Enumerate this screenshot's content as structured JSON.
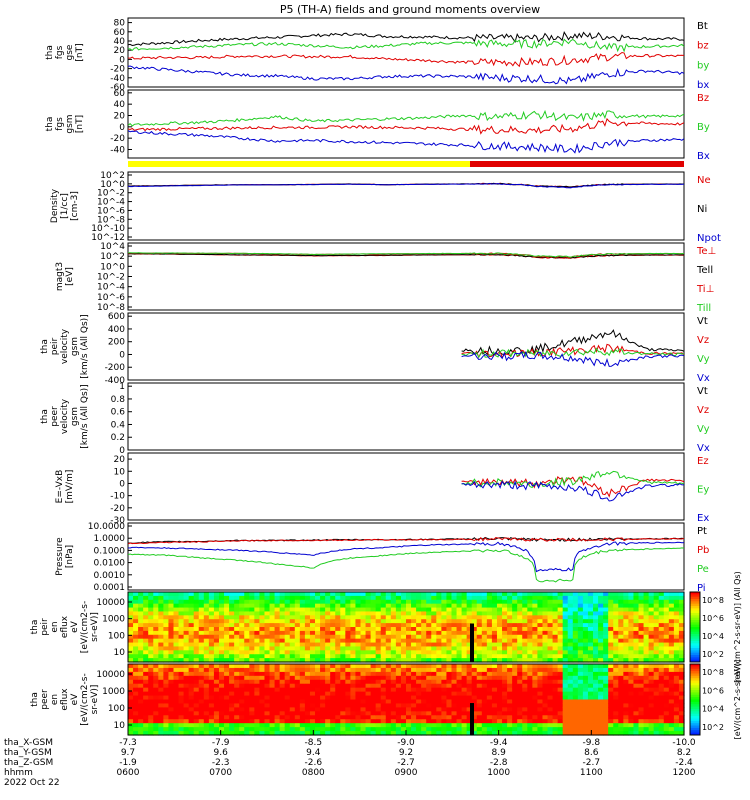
{
  "title": "P5 (TH-A) fields and ground moments overview",
  "colors": {
    "black": "#000000",
    "red": "#e00000",
    "green": "#22cc22",
    "blue": "#0000d0",
    "yellow": "#ffff00",
    "mode_red": "#e00000",
    "heat_low": "#0000ff",
    "heat_high": "#dd0000"
  },
  "chart_data": [
    {
      "id": "fgs_gse",
      "type": "line",
      "ylabel": [
        "tha",
        "fgs",
        "gse",
        "[nT]"
      ],
      "yticks": [
        80,
        60,
        40,
        20,
        0,
        -20,
        -40,
        -60
      ],
      "ylim": [
        -60,
        90
      ],
      "series": [
        {
          "name": "Bt",
          "color": "black",
          "values": [
            32,
            36,
            41,
            45,
            48,
            52,
            55,
            50,
            49,
            47,
            46,
            46,
            52,
            50,
            45,
            44
          ]
        },
        {
          "name": "bz",
          "color": "red",
          "values": [
            2,
            4,
            4,
            7,
            7,
            6,
            6,
            1,
            -2,
            -6,
            -6,
            -6,
            -1,
            6,
            8,
            7
          ]
        },
        {
          "name": "by",
          "color": "green",
          "values": [
            22,
            25,
            28,
            32,
            34,
            30,
            26,
            30,
            35,
            36,
            34,
            34,
            40,
            25,
            28,
            30
          ]
        },
        {
          "name": "bx",
          "color": "blue",
          "values": [
            -16,
            -22,
            -28,
            -34,
            -36,
            -42,
            -42,
            -37,
            -36,
            -37,
            -40,
            -42,
            -48,
            -30,
            -25,
            -30
          ]
        }
      ]
    },
    {
      "id": "fgs_gsm",
      "type": "line",
      "ylabel": [
        "tha",
        "fgs",
        "gsm",
        "[nT]"
      ],
      "yticks": [
        60,
        40,
        20,
        0,
        -20,
        -40
      ],
      "ylim": [
        -55,
        65
      ],
      "series": [
        {
          "name": "Bz",
          "color": "red",
          "values": [
            -5,
            -4,
            -3,
            -2,
            -1,
            -1,
            0,
            -1,
            -2,
            -4,
            -5,
            -6,
            -3,
            8,
            6,
            5
          ]
        },
        {
          "name": "By",
          "color": "green",
          "values": [
            3,
            6,
            8,
            12,
            18,
            10,
            12,
            14,
            16,
            20,
            18,
            22,
            15,
            22,
            18,
            20
          ]
        },
        {
          "name": "Bx",
          "color": "blue",
          "values": [
            -8,
            -12,
            -15,
            -20,
            -25,
            -24,
            -26,
            -28,
            -30,
            -32,
            -34,
            -36,
            -40,
            -28,
            -24,
            -22
          ]
        }
      ]
    },
    {
      "id": "density",
      "type": "line",
      "log": true,
      "ylabel": [
        "Density",
        "[1/cc]",
        "[cm-3]"
      ],
      "yticks": [
        "10^2",
        "10^0",
        "10^-2",
        "10^-4",
        "10^-6",
        "10^-8",
        "10^-10",
        "10^-12"
      ],
      "ylim_exp": [
        -13,
        3
      ],
      "series": [
        {
          "name": "Ne",
          "color": "red",
          "values": [
            0.5,
            0.6,
            0.8,
            1,
            1,
            1.2,
            1.5,
            1,
            1.4,
            1.5,
            1.8,
            0.5,
            0.3,
            1.2,
            1.4,
            1.5
          ]
        },
        {
          "name": "Ni",
          "color": "black",
          "values": [
            0.5,
            0.6,
            0.8,
            1,
            1,
            1.2,
            1.5,
            1,
            1.4,
            1.5,
            1.8,
            0.5,
            0.3,
            1.2,
            1.4,
            1.5
          ]
        },
        {
          "name": "Npot",
          "color": "blue",
          "values": [
            0.4,
            0.5,
            0.7,
            0.9,
            1,
            1.1,
            1.3,
            1,
            1.3,
            1.4,
            1.7,
            0.4,
            0.2,
            1,
            1.2,
            1.3
          ]
        }
      ]
    },
    {
      "id": "temperature",
      "type": "line",
      "log": true,
      "ylabel": [
        "magt3",
        "[eV]"
      ],
      "yticks": [
        "10^4",
        "10^2",
        "10^0",
        "10^-2",
        "10^-4",
        "10^-6",
        "10^-8"
      ],
      "ylim_exp": [
        -9,
        4.5
      ],
      "series": [
        {
          "name": "Te⊥",
          "color": "red",
          "values": [
            200,
            180,
            150,
            120,
            110,
            80,
            90,
            100,
            120,
            130,
            140,
            40,
            30,
            100,
            110,
            120
          ]
        },
        {
          "name": "Tell",
          "color": "black",
          "values": [
            210,
            190,
            160,
            130,
            120,
            90,
            100,
            110,
            130,
            140,
            150,
            45,
            35,
            110,
            120,
            130
          ]
        },
        {
          "name": "Ti⊥",
          "color": "red",
          "values": [
            300,
            280,
            260,
            240,
            200,
            150,
            180,
            200,
            220,
            240,
            250,
            60,
            50,
            200,
            220,
            230
          ]
        },
        {
          "name": "Till",
          "color": "green",
          "values": [
            320,
            300,
            280,
            260,
            220,
            160,
            190,
            210,
            230,
            250,
            260,
            70,
            55,
            210,
            230,
            240
          ]
        }
      ]
    },
    {
      "id": "peir_velocity",
      "type": "line",
      "ylabel": [
        "tha",
        "peir",
        "velocity",
        "gsm",
        "[km/s (All Qs)]"
      ],
      "yticks": [
        600,
        400,
        200,
        0,
        -200,
        -400
      ],
      "ylim": [
        -400,
        650
      ],
      "series": [
        {
          "name": "Vt",
          "color": "black",
          "values": [
            null,
            null,
            null,
            null,
            null,
            null,
            null,
            null,
            null,
            70,
            60,
            80,
            200,
            350,
            80,
            60
          ]
        },
        {
          "name": "Vz",
          "color": "red",
          "values": [
            null,
            null,
            null,
            null,
            null,
            null,
            null,
            null,
            null,
            20,
            10,
            30,
            60,
            100,
            20,
            10
          ]
        },
        {
          "name": "Vy",
          "color": "green",
          "values": [
            null,
            null,
            null,
            null,
            null,
            null,
            null,
            null,
            null,
            0,
            20,
            10,
            40,
            50,
            10,
            0
          ]
        },
        {
          "name": "Vx",
          "color": "blue",
          "values": [
            null,
            null,
            null,
            null,
            null,
            null,
            null,
            null,
            null,
            -20,
            -30,
            -20,
            -60,
            -150,
            -30,
            -20
          ]
        }
      ]
    },
    {
      "id": "peer_velocity",
      "type": "line",
      "ylabel": [
        "tha",
        "peer",
        "velocity",
        "gsm",
        "[km/s (All Qs)]"
      ],
      "yticks": [
        1.0,
        0.8,
        0.6,
        0.4,
        0.2,
        0.0
      ],
      "ylim": [
        0,
        1.05
      ],
      "series": [
        {
          "name": "Vt",
          "color": "black",
          "values": []
        },
        {
          "name": "Vz",
          "color": "red",
          "values": []
        },
        {
          "name": "Vy",
          "color": "green",
          "values": []
        },
        {
          "name": "Vx",
          "color": "blue",
          "values": []
        }
      ]
    },
    {
      "id": "efield",
      "type": "line",
      "ylabel": [
        "E=-VxB",
        "[mV/m]"
      ],
      "yticks": [
        20,
        10,
        0,
        -10,
        -20,
        -30
      ],
      "ylim": [
        -30,
        25
      ],
      "series": [
        {
          "name": "Ez",
          "color": "red",
          "values": [
            null,
            null,
            null,
            null,
            null,
            null,
            null,
            null,
            null,
            1,
            2,
            0,
            5,
            -8,
            3,
            2
          ]
        },
        {
          "name": "Ey",
          "color": "green",
          "values": [
            null,
            null,
            null,
            null,
            null,
            null,
            null,
            null,
            null,
            0,
            1,
            -1,
            2,
            10,
            1,
            0
          ]
        },
        {
          "name": "Ex",
          "color": "blue",
          "values": [
            null,
            null,
            null,
            null,
            null,
            null,
            null,
            null,
            null,
            -1,
            -1,
            -2,
            -3,
            -12,
            -2,
            -1
          ]
        }
      ]
    },
    {
      "id": "pressure",
      "type": "line",
      "log": true,
      "ylabel": [
        "Pressure",
        "[nPa]"
      ],
      "yticks": [
        "10.0000",
        "1.0000",
        "0.1000",
        "0.0100",
        "0.0010",
        "0.0001"
      ],
      "ylim_exp": [
        -4,
        1.2
      ],
      "series": [
        {
          "name": "Pt",
          "color": "black",
          "values": [
            0.45,
            0.55,
            0.6,
            0.7,
            0.7,
            0.75,
            0.8,
            0.8,
            0.85,
            0.9,
            0.95,
            0.8,
            0.8,
            0.9,
            0.95,
            1.0
          ]
        },
        {
          "name": "Pb",
          "color": "red",
          "values": [
            0.4,
            0.5,
            0.55,
            0.65,
            0.7,
            0.72,
            0.75,
            0.78,
            0.8,
            0.85,
            0.9,
            0.8,
            0.8,
            0.85,
            0.9,
            0.95
          ]
        },
        {
          "name": "Pe",
          "color": "green",
          "values": [
            0.06,
            0.05,
            0.03,
            0.02,
            0.01,
            0.005,
            0.03,
            0.05,
            0.08,
            0.1,
            0.12,
            0.0005,
            0.0006,
            0.12,
            0.15,
            0.18
          ]
        },
        {
          "name": "Pi",
          "color": "blue",
          "values": [
            0.2,
            0.18,
            0.15,
            0.12,
            0.08,
            0.05,
            0.15,
            0.2,
            0.3,
            0.35,
            0.4,
            0.003,
            0.004,
            0.4,
            0.45,
            0.5
          ]
        }
      ]
    },
    {
      "id": "peir_spec",
      "type": "heatmap",
      "ylabel": [
        "tha",
        "peir",
        "en",
        "eflux",
        "eV",
        "[eV/(cm2-s-",
        "sr-eV)]"
      ],
      "yticks": [
        "10000",
        "1000",
        "100",
        "10"
      ],
      "cbar_label": "[eV/(cm^2-s-sr-eV)] (All Qs)",
      "cbar_ticks": [
        "10^8",
        "10^6",
        "10^4",
        "10^2"
      ]
    },
    {
      "id": "peer_spec",
      "type": "heatmap",
      "ylabel": [
        "tha",
        "peer",
        "en",
        "eflux",
        "eV",
        "[eV/(cm2-s-",
        "sr-eV)]"
      ],
      "yticks": [
        "10000",
        "1000",
        "100",
        "10"
      ],
      "cbar_label": "[eV/(cm^2-s-sr-eV)]",
      "cbar_ticks": [
        "10^8",
        "10^6",
        "10^4",
        "10^2"
      ]
    }
  ],
  "xaxis": {
    "rows": [
      {
        "label": "tha_X-GSM",
        "values": [
          "-7.3",
          "-7.9",
          "-8.5",
          "-9.0",
          "-9.4",
          "-9.8",
          "-10.0"
        ]
      },
      {
        "label": "tha_Y-GSM",
        "values": [
          "9.7",
          "9.6",
          "9.4",
          "9.2",
          "8.9",
          "8.6",
          "8.2"
        ]
      },
      {
        "label": "tha_Z-GSM",
        "values": [
          "-1.9",
          "-2.3",
          "-2.6",
          "-2.7",
          "-2.8",
          "-2.7",
          "-2.4"
        ]
      },
      {
        "label": "hhmm",
        "values": [
          "0600",
          "0700",
          "0800",
          "0900",
          "1000",
          "1100",
          "1200"
        ]
      }
    ],
    "date": "2022 Oct 22"
  }
}
